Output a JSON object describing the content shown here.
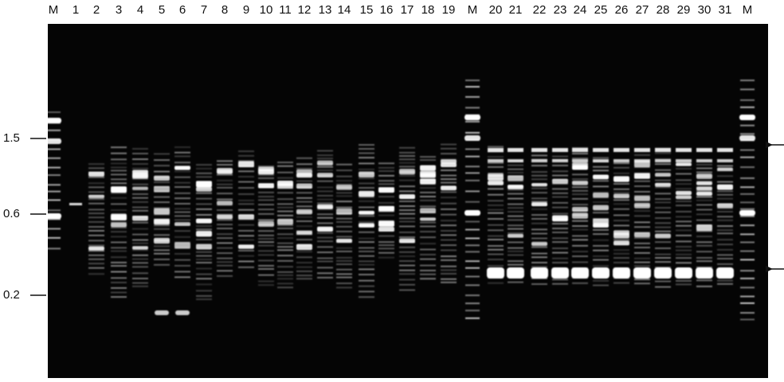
{
  "lanes": [
    "M",
    "1",
    "2",
    "3",
    "4",
    "5",
    "6",
    "7",
    "8",
    "9",
    "10",
    "11",
    "12",
    "13",
    "14",
    "15",
    "16",
    "17",
    "18",
    "19",
    "M",
    "20",
    "21",
    "22",
    "23",
    "24",
    "25",
    "26",
    "27",
    "28",
    "29",
    "30",
    "31",
    "M"
  ],
  "size_markers": [
    "1.5",
    "0.6",
    "0.2"
  ]
}
